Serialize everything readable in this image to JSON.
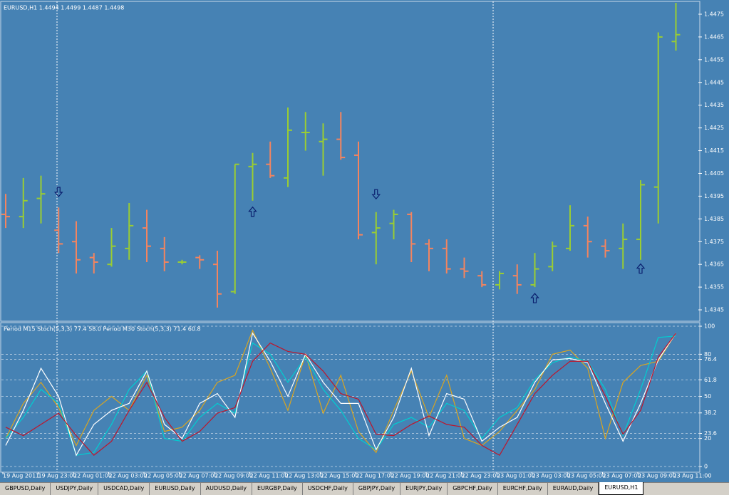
{
  "chart_data": [
    {
      "type": "ohlc",
      "title": "EURUSD,H1  1.4494 1.4499 1.4487 1.4498",
      "categories": [
        "19 Aug 2011",
        null,
        "19 Aug 23:00",
        null,
        "22 Aug 01:00",
        null,
        "22 Aug 03:00",
        null,
        "22 Aug 05:00",
        null,
        "22 Aug 07:00",
        null,
        "22 Aug 09:00",
        null,
        "22 Aug 11:00",
        null,
        "22 Aug 13:00",
        null,
        "22 Aug 15:00",
        null,
        "22 Aug 17:00",
        null,
        "22 Aug 19:00",
        null,
        "22 Aug 21:00",
        null,
        "22 Aug 23:00",
        null,
        "23 Aug 01:00",
        null,
        "23 Aug 03:00",
        null,
        "23 Aug 05:00",
        null,
        "23 Aug 07:00",
        null,
        "23 Aug 09:00",
        null,
        "23 Aug 11:00"
      ],
      "open": [
        1.4387,
        1.4386,
        1.4394,
        1.438,
        1.4375,
        1.4368,
        1.4365,
        1.4372,
        1.4381,
        1.4372,
        1.4366,
        1.4368,
        1.4365,
        1.4353,
        1.4408,
        1.4409,
        1.4403,
        1.4423,
        1.4419,
        1.442,
        1.4413,
        1.4379,
        1.4383,
        1.4387,
        1.4374,
        1.4372,
        1.4363,
        1.436,
        1.4356,
        1.436,
        1.4356,
        1.4364,
        1.4372,
        1.4382,
        1.4373,
        1.4372,
        1.4376,
        1.4399,
        1.4463
      ],
      "high": [
        1.4396,
        1.4403,
        1.4404,
        1.439,
        1.4384,
        1.437,
        1.4381,
        1.4392,
        1.4389,
        1.4377,
        1.4367,
        1.4369,
        1.4371,
        1.4409,
        1.4414,
        1.4419,
        1.4434,
        1.4432,
        1.4427,
        1.4432,
        1.4419,
        1.4388,
        1.4389,
        1.4388,
        1.4376,
        1.4376,
        1.4368,
        1.4362,
        1.4362,
        1.4365,
        1.437,
        1.4375,
        1.4391,
        1.4386,
        1.4376,
        1.4383,
        1.4402,
        1.4467,
        1.448
      ],
      "low": [
        1.4381,
        1.4381,
        1.4383,
        1.437,
        1.4361,
        1.4361,
        1.4364,
        1.4367,
        1.4366,
        1.4362,
        1.4365,
        1.4363,
        1.4346,
        1.4352,
        1.4393,
        1.4403,
        1.4399,
        1.4415,
        1.4404,
        1.4411,
        1.4376,
        1.4365,
        1.4376,
        1.4366,
        1.4362,
        1.4361,
        1.4359,
        1.4355,
        1.4354,
        1.4352,
        1.4355,
        1.4362,
        1.4371,
        1.4368,
        1.4368,
        1.4363,
        1.4367,
        1.4383,
        1.4459
      ],
      "close": [
        1.4386,
        1.4393,
        1.4396,
        1.4374,
        1.4367,
        1.4366,
        1.4373,
        1.4382,
        1.4373,
        1.4366,
        1.4366,
        1.4367,
        1.4352,
        1.4409,
        1.4409,
        1.4404,
        1.4424,
        1.4423,
        1.442,
        1.4412,
        1.4378,
        1.4381,
        1.4387,
        1.4374,
        1.4372,
        1.4363,
        1.4362,
        1.4356,
        1.4361,
        1.4356,
        1.4363,
        1.4373,
        1.4382,
        1.4375,
        1.4371,
        1.4376,
        1.44,
        1.4465,
        1.4466
      ],
      "up_color": "#9acd32",
      "down_color": "#f4845f",
      "signals": [
        {
          "index": 3,
          "direction": "down",
          "value": 1.4397
        },
        {
          "index": 14,
          "direction": "up",
          "value": 1.4388
        },
        {
          "index": 21,
          "direction": "down",
          "value": 1.4396
        },
        {
          "index": 30,
          "direction": "up",
          "value": 1.435
        },
        {
          "index": 36,
          "direction": "up",
          "value": 1.4363
        }
      ],
      "ylim": [
        1.434,
        1.448
      ],
      "yticks": [
        1.4345,
        1.4355,
        1.4365,
        1.4375,
        1.4385,
        1.4395,
        1.4405,
        1.4415,
        1.4425,
        1.4435,
        1.4445,
        1.4455,
        1.4465,
        1.4475
      ]
    },
    {
      "type": "line",
      "title": "Period M15 Stoch(5,3,3) 77.4 58.0  Period M30 Stoch(5,3,3) 71.4 60.8",
      "series": [
        {
          "color": "#daa520",
          "values": [
            20,
            45,
            60,
            42,
            15,
            40,
            50,
            40,
            65,
            25,
            28,
            40,
            60,
            65,
            97,
            70,
            40,
            80,
            38,
            65,
            25,
            10,
            40,
            68,
            35,
            65,
            20,
            15,
            25,
            40,
            55,
            80,
            83,
            70,
            20,
            60,
            72,
            75,
            95
          ]
        },
        {
          "color": "#00ced1",
          "values": [
            20,
            35,
            55,
            45,
            8,
            10,
            30,
            55,
            68,
            20,
            18,
            35,
            45,
            38,
            88,
            80,
            60,
            78,
            55,
            40,
            20,
            12,
            30,
            35,
            28,
            45,
            40,
            20,
            35,
            42,
            62,
            74,
            78,
            75,
            55,
            22,
            55,
            92,
            93
          ]
        },
        {
          "color": "#ffffff",
          "values": [
            15,
            40,
            70,
            50,
            8,
            30,
            40,
            45,
            68,
            30,
            20,
            45,
            52,
            35,
            95,
            75,
            50,
            80,
            60,
            45,
            45,
            12,
            35,
            70,
            22,
            52,
            48,
            18,
            28,
            35,
            60,
            76,
            77,
            74,
            45,
            18,
            45,
            76,
            95
          ]
        },
        {
          "color": "#c0142a",
          "values": [
            28,
            22,
            30,
            38,
            22,
            8,
            18,
            40,
            60,
            35,
            18,
            25,
            38,
            42,
            75,
            88,
            82,
            80,
            68,
            52,
            48,
            23,
            22,
            30,
            36,
            30,
            28,
            15,
            8,
            30,
            52,
            65,
            75,
            75,
            50,
            23,
            40,
            78,
            95
          ]
        }
      ],
      "ylim": [
        0,
        100
      ],
      "yticks": [
        0,
        20,
        23.6,
        38.2,
        50,
        61.8,
        76.4,
        80,
        100
      ]
    }
  ],
  "tabs": {
    "items": [
      "GBPUSD,Daily",
      "USDJPY,Daily",
      "USDCAD,Daily",
      "EURUSD,Daily",
      "AUDUSD,Daily",
      "EURGBP,Daily",
      "USDCHF,Daily",
      "GBPJPY,Daily",
      "EURJPY,Daily",
      "GBPCHF,Daily",
      "EURCHF,Daily",
      "EURAUD,Daily",
      "EURUSD,H1"
    ],
    "active": 12
  }
}
